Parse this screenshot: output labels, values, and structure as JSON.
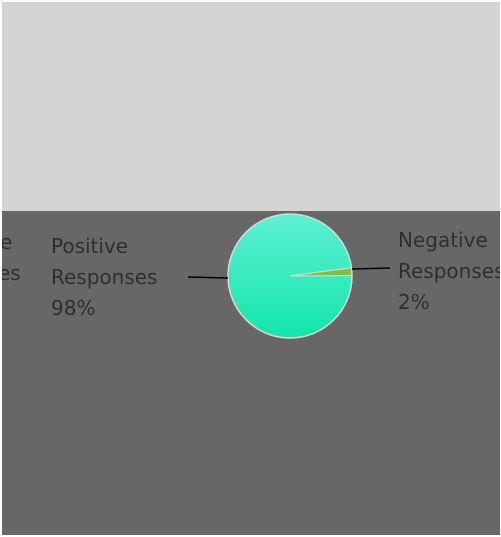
{
  "chart_data": {
    "type": "pie",
    "slices": [
      {
        "label_line1": "Positive",
        "label_line2": "Responses",
        "percent_label": "98%",
        "value": 98,
        "color": "#1de9b6"
      },
      {
        "label_line1": "Negative",
        "label_line2": "Responses",
        "percent_label": "2%",
        "value": 2,
        "color": "#7cc24a"
      }
    ],
    "clipped_left_labels": {
      "line1": "e",
      "line2": "es"
    },
    "title": "",
    "legend": "none"
  },
  "colors": {
    "frame_background": "#676767",
    "top_panel_background": "#d4d4d4",
    "label_color": "#2f2f2f"
  }
}
